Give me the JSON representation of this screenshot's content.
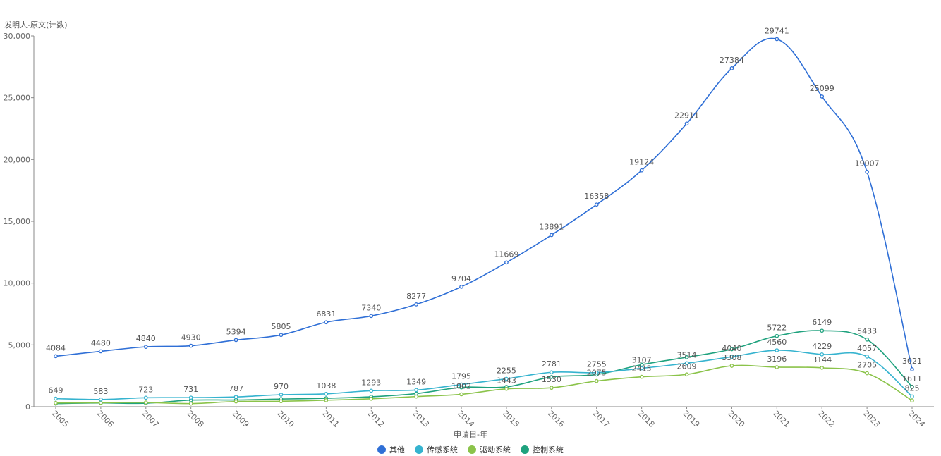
{
  "chart_data": {
    "type": "line",
    "ylabel": "发明人-原文(计数)",
    "xlabel": "申请日-年",
    "ylim": [
      0,
      30000
    ],
    "yticks": [
      "0",
      "5,000",
      "10,000",
      "15,000",
      "20,000",
      "25,000",
      "30,000"
    ],
    "grid": false,
    "legend_position": "bottom",
    "categories": [
      "2005",
      "2006",
      "2007",
      "2008",
      "2009",
      "2010",
      "2011",
      "2012",
      "2013",
      "2014",
      "2015",
      "2016",
      "2017",
      "2018",
      "2019",
      "2020",
      "2021",
      "2022",
      "2023",
      "2024"
    ],
    "series": [
      {
        "name": "其他",
        "color": "#2f6fd6",
        "labeled": true,
        "values": [
          4084,
          4480,
          4840,
          4930,
          5394,
          5805,
          6831,
          7340,
          8277,
          9704,
          11669,
          13891,
          16358,
          19124,
          22911,
          27384,
          29741,
          25099,
          19007,
          3021
        ]
      },
      {
        "name": "传感系统",
        "color": "#35b3cf",
        "labeled": true,
        "values": [
          649,
          583,
          723,
          731,
          787,
          970,
          1038,
          1293,
          1349,
          1795,
          2255,
          2781,
          2755,
          3107,
          3514,
          4040,
          4560,
          4229,
          4057,
          825
        ]
      },
      {
        "name": "驱动系统",
        "color": "#8bc34a",
        "labeled": true,
        "values": [
          300,
          320,
          340,
          250,
          420,
          440,
          520,
          640,
          820,
          1002,
          1443,
          1530,
          2075,
          2415,
          2609,
          3308,
          3196,
          3144,
          2705,
          500
        ]
      },
      {
        "name": "控制系统",
        "color": "#1fa27e",
        "labeled": true,
        "values": [
          250,
          300,
          280,
          530,
          540,
          620,
          680,
          800,
          1060,
          1560,
          1600,
          2400,
          2600,
          3400,
          4000,
          4650,
          5722,
          6149,
          5433,
          1611
        ]
      }
    ],
    "value_labels": {
      "其他": [
        4084,
        4480,
        4840,
        4930,
        5394,
        5805,
        6831,
        7340,
        8277,
        9704,
        11669,
        13891,
        16358,
        19124,
        22911,
        27384,
        29741,
        25099,
        19007,
        3021
      ],
      "传感系统": [
        649,
        583,
        723,
        731,
        787,
        970,
        1038,
        1293,
        1349,
        1795,
        2255,
        2781,
        2755,
        3107,
        3514,
        4040,
        4560,
        4229,
        4057,
        825
      ],
      "驱动系统": [
        null,
        null,
        null,
        null,
        null,
        null,
        null,
        null,
        null,
        1002,
        1443,
        1530,
        2075,
        2415,
        2609,
        3308,
        3196,
        3144,
        2705,
        null
      ],
      "控制系统": [
        null,
        null,
        null,
        null,
        null,
        null,
        null,
        null,
        null,
        null,
        null,
        null,
        null,
        null,
        null,
        null,
        5722,
        6149,
        5433,
        1611
      ]
    }
  }
}
